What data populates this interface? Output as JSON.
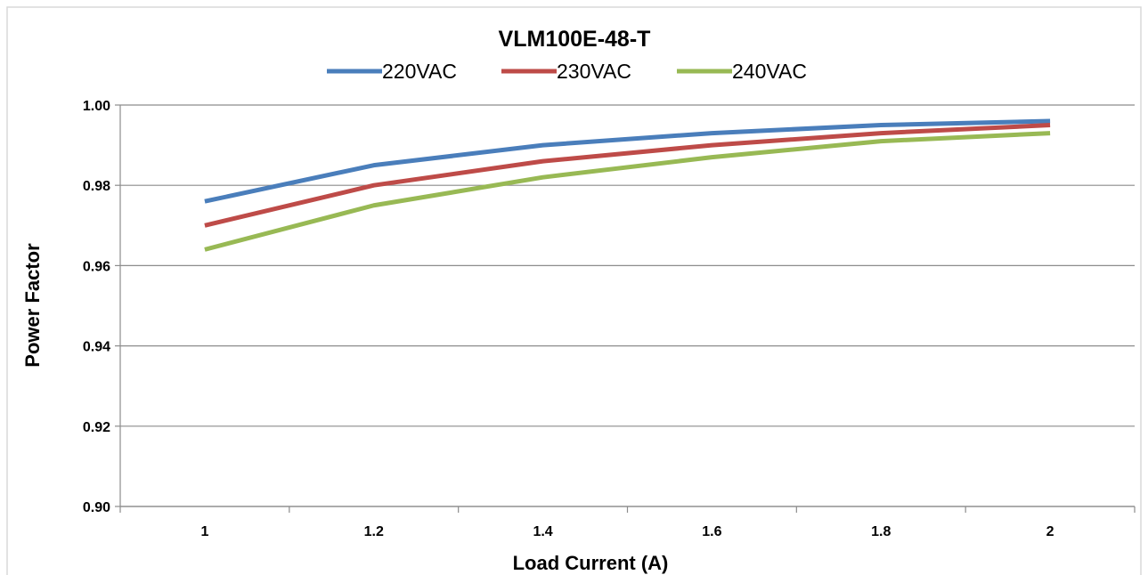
{
  "chart_data": {
    "type": "line",
    "title": "VLM100E-48-T",
    "xlabel": "Load Current (A)",
    "ylabel": "Power Factor",
    "x": [
      1,
      1.2,
      1.4,
      1.6,
      1.8,
      2
    ],
    "x_tick_labels": [
      "1",
      "1.2",
      "1.4",
      "1.6",
      "1.8",
      "2"
    ],
    "y_tick_labels": [
      "0.90",
      "0.92",
      "0.94",
      "0.96",
      "0.98",
      "1.00"
    ],
    "ylim": [
      0.9,
      1.0
    ],
    "grid": "horizontal",
    "legend_position": "top",
    "series": [
      {
        "name": "220VAC",
        "color": "#4a7ebb",
        "values": [
          0.976,
          0.985,
          0.99,
          0.993,
          0.995,
          0.996
        ]
      },
      {
        "name": "230VAC",
        "color": "#be4b48",
        "values": [
          0.97,
          0.98,
          0.986,
          0.99,
          0.993,
          0.995
        ]
      },
      {
        "name": "240VAC",
        "color": "#98b954",
        "values": [
          0.964,
          0.975,
          0.982,
          0.987,
          0.991,
          0.993
        ]
      }
    ]
  }
}
